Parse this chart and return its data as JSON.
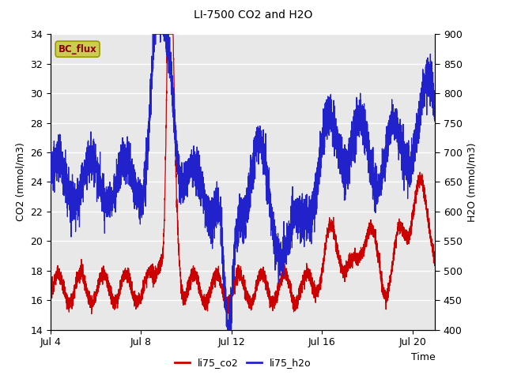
{
  "title": "LI-7500 CO2 and H2O",
  "xlabel": "Time",
  "ylabel_left": "CO2 (mmol/m3)",
  "ylabel_right": "H2O (mmol/m3)",
  "xlim": [
    0,
    17
  ],
  "ylim_left": [
    14,
    34
  ],
  "ylim_right": [
    400,
    900
  ],
  "yticks_left": [
    14,
    16,
    18,
    20,
    22,
    24,
    26,
    28,
    30,
    32,
    34
  ],
  "yticks_right": [
    400,
    450,
    500,
    550,
    600,
    650,
    700,
    750,
    800,
    850,
    900
  ],
  "xtick_labels": [
    "Jul 4",
    "Jul 8",
    "Jul 12",
    "Jul 16",
    "Jul 20"
  ],
  "xtick_positions": [
    0,
    4,
    8,
    12,
    16
  ],
  "color_co2": "#cc0000",
  "color_h2o": "#2222cc",
  "legend_label_co2": "li75_co2",
  "legend_label_h2o": "li75_h2o",
  "annotation_text": "BC_flux",
  "annotation_bg": "#cccc55",
  "annotation_border": "#999900",
  "bg_color": "#e8e8e8",
  "fig_bg": "#ffffff",
  "grid_color": "#ffffff",
  "linewidth": 0.9
}
